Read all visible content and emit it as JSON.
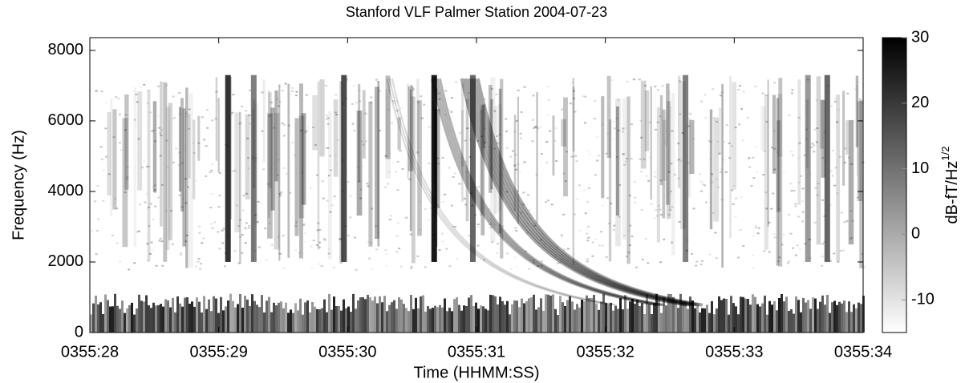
{
  "chart_data": {
    "type": "spectrogram",
    "title": "Stanford VLF  Palmer Station  2004-07-23",
    "x_label": "Time (HHMM:SS)",
    "y_label": "Frequency (Hz)",
    "xlim": [
      28,
      34
    ],
    "xticks": [
      {
        "value": 28,
        "label": "0355:28"
      },
      {
        "value": 29,
        "label": "0355:29"
      },
      {
        "value": 30,
        "label": "0355:30"
      },
      {
        "value": 31,
        "label": "0355:31"
      },
      {
        "value": 32,
        "label": "0355:32"
      },
      {
        "value": 33,
        "label": "0355:33"
      },
      {
        "value": 34,
        "label": "0355:34"
      }
    ],
    "ylim": [
      0,
      8360
    ],
    "yticks": [
      0,
      2000,
      4000,
      6000,
      8000
    ],
    "colorbar_label": "dB-fT/Hz",
    "colorbar_label_sup": "1/2",
    "clim": [
      -15,
      30
    ],
    "cticks": [
      -10,
      0,
      10,
      20,
      30
    ],
    "colormap": [
      "#ffffff",
      "#000000"
    ]
  }
}
